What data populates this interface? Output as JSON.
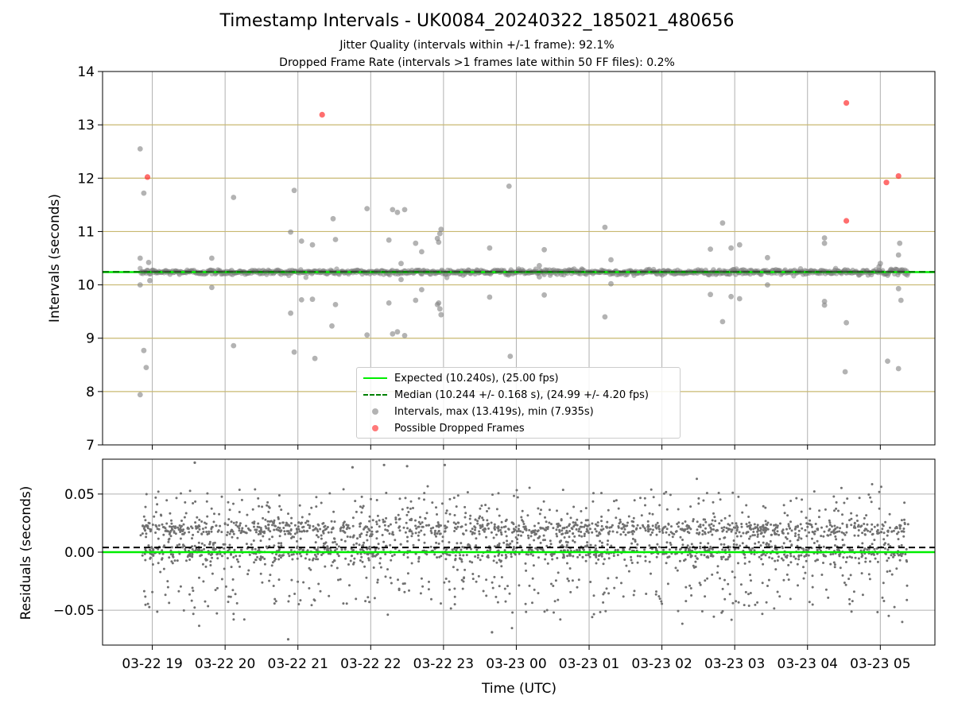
{
  "header": {
    "title": "Timestamp Intervals - UK0084_20240322_185021_480656",
    "subtitle_1": "Jitter Quality (intervals within +/-1 frame): 92.1%",
    "subtitle_2": "Dropped Frame Rate (intervals >1 frames late within 50 FF files): 0.2%"
  },
  "legend": {
    "expected": "Expected (10.240s), (25.00 fps)",
    "median": "Median (10.244 +/- 0.168 s), (24.99 +/- 4.20 fps)",
    "intervals": "Intervals, max (13.419s), min (7.935s)",
    "dropped": "Possible Dropped Frames"
  },
  "colors": {
    "expected": "#00ee00",
    "median": "#008000",
    "intervals": "#808080",
    "dropped": "#ff2020",
    "hgrid_top": "#c8b870",
    "grid": "#b0b0b0"
  },
  "chart_data": [
    {
      "type": "scatter",
      "panel": "intervals",
      "ylabel": "Intervals (seconds)",
      "xlim": [
        "2024-03-22 18:19",
        "2024-03-23 05:45"
      ],
      "ylim": [
        7,
        14
      ],
      "yticks": [
        7,
        8,
        9,
        10,
        11,
        12,
        13,
        14
      ],
      "grid": true,
      "legend_position": "lower center",
      "expected_interval": 10.24,
      "median_interval": 10.244,
      "series": [
        {
          "name": "Intervals, max (13.419s), min (7.935s)",
          "baseline": 10.24,
          "x_range": [
            "2024-03-22 18:50",
            "2024-03-23 05:23"
          ],
          "outliers": [
            {
              "x": "2024-03-22 18:50",
              "y": 12.55
            },
            {
              "x": "2024-03-22 18:50",
              "y": 10.5
            },
            {
              "x": "2024-03-22 18:50",
              "y": 10.0
            },
            {
              "x": "2024-03-22 18:50",
              "y": 7.94
            },
            {
              "x": "2024-03-22 18:53",
              "y": 11.72
            },
            {
              "x": "2024-03-22 18:53",
              "y": 8.77
            },
            {
              "x": "2024-03-22 18:55",
              "y": 8.45
            },
            {
              "x": "2024-03-22 18:57",
              "y": 10.42
            },
            {
              "x": "2024-03-22 18:58",
              "y": 10.08
            },
            {
              "x": "2024-03-22 19:49",
              "y": 10.5
            },
            {
              "x": "2024-03-22 19:49",
              "y": 9.95
            },
            {
              "x": "2024-03-22 20:07",
              "y": 11.64
            },
            {
              "x": "2024-03-22 20:07",
              "y": 8.86
            },
            {
              "x": "2024-03-22 20:54",
              "y": 10.99
            },
            {
              "x": "2024-03-22 20:54",
              "y": 9.47
            },
            {
              "x": "2024-03-22 20:57",
              "y": 11.77
            },
            {
              "x": "2024-03-22 20:57",
              "y": 8.74
            },
            {
              "x": "2024-03-22 21:03",
              "y": 10.82
            },
            {
              "x": "2024-03-22 21:03",
              "y": 9.72
            },
            {
              "x": "2024-03-22 21:12",
              "y": 10.75
            },
            {
              "x": "2024-03-22 21:12",
              "y": 9.73
            },
            {
              "x": "2024-03-22 21:14",
              "y": 8.62
            },
            {
              "x": "2024-03-22 21:28",
              "y": 9.23
            },
            {
              "x": "2024-03-22 21:29",
              "y": 11.24
            },
            {
              "x": "2024-03-22 21:31",
              "y": 10.85
            },
            {
              "x": "2024-03-22 21:31",
              "y": 9.63
            },
            {
              "x": "2024-03-22 21:57",
              "y": 11.43
            },
            {
              "x": "2024-03-22 21:57",
              "y": 9.06
            },
            {
              "x": "2024-03-22 22:15",
              "y": 10.84
            },
            {
              "x": "2024-03-22 22:15",
              "y": 9.66
            },
            {
              "x": "2024-03-22 22:18",
              "y": 11.41
            },
            {
              "x": "2024-03-22 22:18",
              "y": 9.08
            },
            {
              "x": "2024-03-22 22:22",
              "y": 11.36
            },
            {
              "x": "2024-03-22 22:22",
              "y": 9.12
            },
            {
              "x": "2024-03-22 22:25",
              "y": 10.4
            },
            {
              "x": "2024-03-22 22:25",
              "y": 10.1
            },
            {
              "x": "2024-03-22 22:28",
              "y": 11.41
            },
            {
              "x": "2024-03-22 22:28",
              "y": 9.05
            },
            {
              "x": "2024-03-22 22:37",
              "y": 10.78
            },
            {
              "x": "2024-03-22 22:37",
              "y": 9.71
            },
            {
              "x": "2024-03-22 22:42",
              "y": 10.62
            },
            {
              "x": "2024-03-22 22:42",
              "y": 9.91
            },
            {
              "x": "2024-03-22 22:55",
              "y": 10.87
            },
            {
              "x": "2024-03-22 22:55",
              "y": 9.63
            },
            {
              "x": "2024-03-22 22:57",
              "y": 10.96
            },
            {
              "x": "2024-03-22 22:57",
              "y": 9.55
            },
            {
              "x": "2024-03-22 22:58",
              "y": 11.04
            },
            {
              "x": "2024-03-22 22:58",
              "y": 9.44
            },
            {
              "x": "2024-03-22 22:56",
              "y": 10.8
            },
            {
              "x": "2024-03-22 22:56",
              "y": 9.66
            },
            {
              "x": "2024-03-22 23:38",
              "y": 10.69
            },
            {
              "x": "2024-03-22 23:38",
              "y": 9.77
            },
            {
              "x": "2024-03-22 23:54",
              "y": 11.85
            },
            {
              "x": "2024-03-22 23:55",
              "y": 8.66
            },
            {
              "x": "2024-03-23 00:19",
              "y": 10.36
            },
            {
              "x": "2024-03-23 00:19",
              "y": 10.15
            },
            {
              "x": "2024-03-23 00:23",
              "y": 10.66
            },
            {
              "x": "2024-03-23 00:23",
              "y": 9.81
            },
            {
              "x": "2024-03-23 01:13",
              "y": 11.08
            },
            {
              "x": "2024-03-23 01:13",
              "y": 9.4
            },
            {
              "x": "2024-03-23 01:18",
              "y": 10.47
            },
            {
              "x": "2024-03-23 01:18",
              "y": 10.02
            },
            {
              "x": "2024-03-23 02:40",
              "y": 10.67
            },
            {
              "x": "2024-03-23 02:40",
              "y": 9.82
            },
            {
              "x": "2024-03-23 02:50",
              "y": 11.16
            },
            {
              "x": "2024-03-23 02:50",
              "y": 9.31
            },
            {
              "x": "2024-03-23 02:57",
              "y": 10.69
            },
            {
              "x": "2024-03-23 02:57",
              "y": 9.78
            },
            {
              "x": "2024-03-23 03:04",
              "y": 10.75
            },
            {
              "x": "2024-03-23 03:04",
              "y": 9.74
            },
            {
              "x": "2024-03-23 03:27",
              "y": 10.51
            },
            {
              "x": "2024-03-23 03:27",
              "y": 10.0
            },
            {
              "x": "2024-03-23 04:14",
              "y": 10.88
            },
            {
              "x": "2024-03-23 04:14",
              "y": 10.78
            },
            {
              "x": "2024-03-23 04:14",
              "y": 9.69
            },
            {
              "x": "2024-03-23 04:14",
              "y": 9.62
            },
            {
              "x": "2024-03-23 04:31",
              "y": 8.37
            },
            {
              "x": "2024-03-23 04:32",
              "y": 9.29
            },
            {
              "x": "2024-03-23 04:59",
              "y": 10.34
            },
            {
              "x": "2024-03-23 05:00",
              "y": 10.4
            },
            {
              "x": "2024-03-23 05:06",
              "y": 8.57
            },
            {
              "x": "2024-03-23 05:15",
              "y": 10.56
            },
            {
              "x": "2024-03-23 05:15",
              "y": 9.93
            },
            {
              "x": "2024-03-23 05:16",
              "y": 10.78
            },
            {
              "x": "2024-03-23 05:17",
              "y": 9.71
            },
            {
              "x": "2024-03-23 05:15",
              "y": 8.43
            }
          ]
        },
        {
          "name": "Possible Dropped Frames",
          "points": [
            {
              "x": "2024-03-22 18:56",
              "y": 12.02
            },
            {
              "x": "2024-03-22 21:20",
              "y": 13.19
            },
            {
              "x": "2024-03-23 04:32",
              "y": 13.41
            },
            {
              "x": "2024-03-23 04:32",
              "y": 11.2
            },
            {
              "x": "2024-03-23 05:05",
              "y": 11.92
            },
            {
              "x": "2024-03-23 05:15",
              "y": 12.04
            }
          ]
        }
      ]
    },
    {
      "type": "scatter",
      "panel": "residuals",
      "xlabel": "Time (UTC)",
      "ylabel": "Residuals (seconds)",
      "xlim": [
        "2024-03-22 18:19",
        "2024-03-23 05:45"
      ],
      "ylim": [
        -0.08,
        0.08
      ],
      "yticks": [
        -0.05,
        0.0,
        0.05
      ],
      "ytick_labels": [
        "−0.05",
        "0.00",
        "0.05"
      ],
      "xticks": [
        "2024-03-22 19:00",
        "2024-03-22 20:00",
        "2024-03-22 21:00",
        "2024-03-22 22:00",
        "2024-03-22 23:00",
        "2024-03-23 00:00",
        "2024-03-23 01:00",
        "2024-03-23 02:00",
        "2024-03-23 03:00",
        "2024-03-23 04:00",
        "2024-03-23 05:00"
      ],
      "xtick_labels": [
        "03-22 19",
        "03-22 20",
        "03-22 21",
        "03-22 22",
        "03-22 23",
        "03-23 00",
        "03-23 01",
        "03-23 02",
        "03-23 03",
        "03-23 04",
        "03-23 05"
      ],
      "grid": true,
      "expected_residual": 0.0,
      "median_residual": 0.004,
      "series": [
        {
          "name": "Residuals",
          "distribution": "residuals of every interval, spread between about -0.05 and 0.05 s with a dense band near 0.02 and 0.00",
          "extremes": [
            {
              "x": "2024-03-22 19:35",
              "y": 0.077
            },
            {
              "x": "2024-03-22 20:52",
              "y": -0.075
            },
            {
              "x": "2024-03-22 21:45",
              "y": 0.073
            },
            {
              "x": "2024-03-22 22:11",
              "y": 0.075
            },
            {
              "x": "2024-03-22 22:30",
              "y": 0.074
            },
            {
              "x": "2024-03-22 23:01",
              "y": 0.075
            },
            {
              "x": "2024-03-22 23:40",
              "y": -0.069
            }
          ]
        }
      ]
    }
  ]
}
